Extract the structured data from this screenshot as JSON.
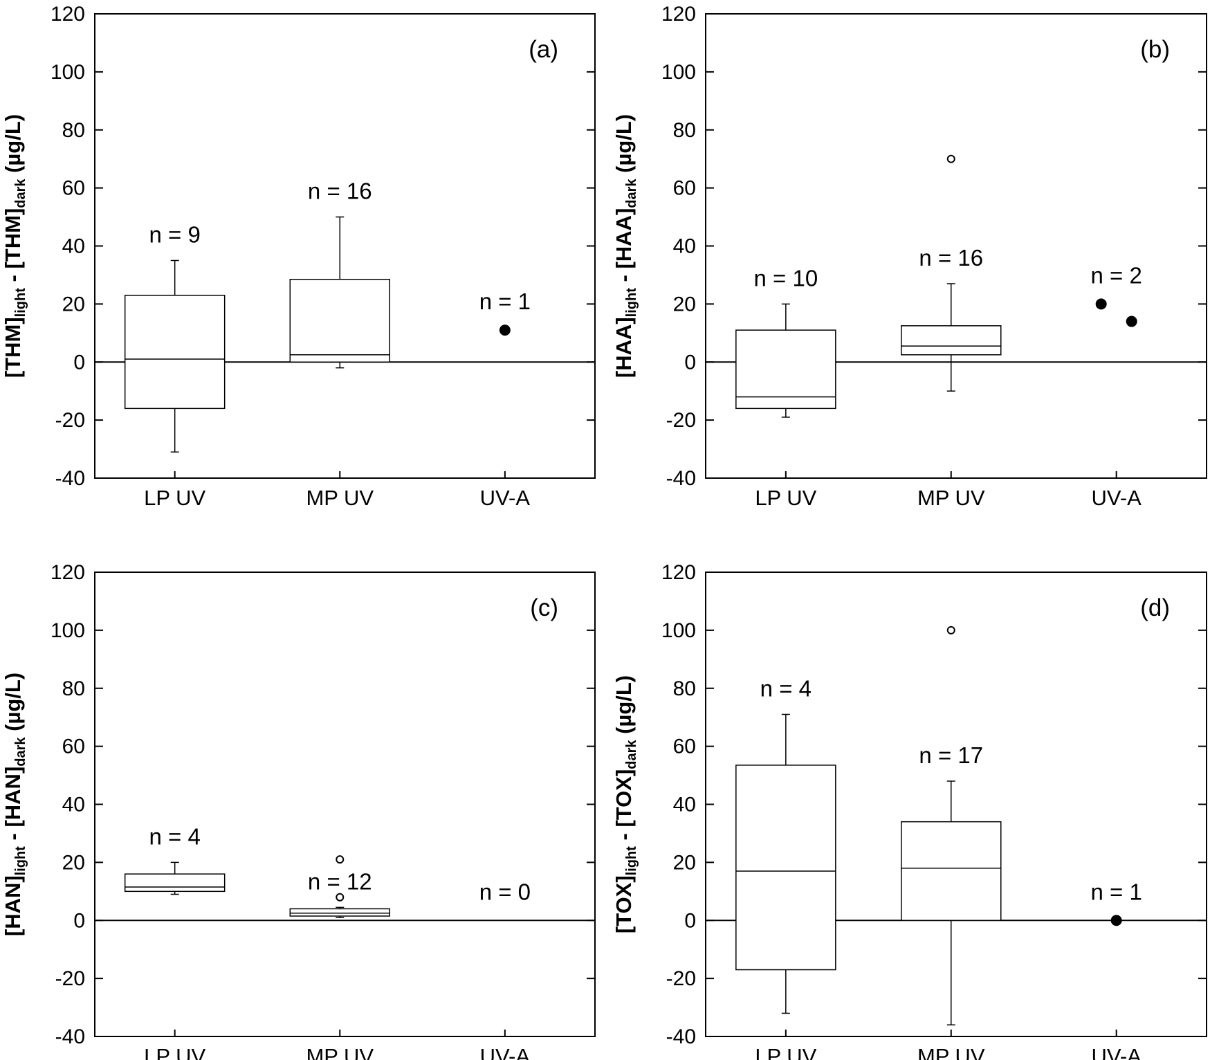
{
  "figure": {
    "x_categories": [
      "LP UV",
      "MP UV",
      "UV-A"
    ],
    "y_tick_labels": [
      "120",
      "100",
      "80",
      "60",
      "40",
      "20",
      "0",
      "-20",
      "-40"
    ]
  },
  "chart_data": [
    {
      "type": "box",
      "panel": "(a)",
      "ylabel_parts": [
        "[THM]",
        "light",
        " - [THM]",
        "dark",
        " (µg/L)"
      ],
      "ylim": [
        -40,
        120
      ],
      "yticks": [
        -40,
        -20,
        0,
        20,
        40,
        60,
        80,
        100,
        120
      ],
      "categories": [
        "LP UV",
        "MP UV",
        "UV-A"
      ],
      "series": [
        {
          "category": "LP UV",
          "n_label": "n = 9",
          "min": -31,
          "q1": -16,
          "median": 1,
          "q3": 23,
          "max": 35,
          "outliers": []
        },
        {
          "category": "MP UV",
          "n_label": "n = 16",
          "min": -2,
          "q1": 0,
          "median": 2.5,
          "q3": 28.5,
          "max": 50,
          "outliers": []
        },
        {
          "category": "UV-A",
          "n_label": "n = 1",
          "points": [
            11
          ]
        }
      ]
    },
    {
      "type": "box",
      "panel": "(b)",
      "ylabel_parts": [
        "[HAA]",
        "light",
        " - [HAA]",
        "dark",
        " (µg/L)"
      ],
      "ylim": [
        -40,
        120
      ],
      "yticks": [
        -40,
        -20,
        0,
        20,
        40,
        60,
        80,
        100,
        120
      ],
      "categories": [
        "LP UV",
        "MP UV",
        "UV-A"
      ],
      "series": [
        {
          "category": "LP UV",
          "n_label": "n = 10",
          "min": -19,
          "q1": -16,
          "median": -12,
          "q3": 11,
          "max": 20,
          "outliers": []
        },
        {
          "category": "MP UV",
          "n_label": "n = 16",
          "min": -10,
          "q1": 2.5,
          "median": 5.5,
          "q3": 12.5,
          "max": 27,
          "outliers": [
            70
          ]
        },
        {
          "category": "UV-A",
          "n_label": "n = 2",
          "points": [
            20,
            14
          ]
        }
      ]
    },
    {
      "type": "box",
      "panel": "(c)",
      "ylabel_parts": [
        "[HAN]",
        "light",
        " - [HAN]",
        "dark",
        " (µg/L)"
      ],
      "ylim": [
        -40,
        120
      ],
      "yticks": [
        -40,
        -20,
        0,
        20,
        40,
        60,
        80,
        100,
        120
      ],
      "categories": [
        "LP UV",
        "MP UV",
        "UV-A"
      ],
      "series": [
        {
          "category": "LP UV",
          "n_label": "n = 4",
          "min": 9,
          "q1": 10,
          "median": 11.5,
          "q3": 16,
          "max": 20,
          "outliers": []
        },
        {
          "category": "MP UV",
          "n_label": "n = 12",
          "min": 1,
          "q1": 1.5,
          "median": 2.5,
          "q3": 4,
          "max": 4.5,
          "outliers": [
            8,
            21
          ]
        },
        {
          "category": "UV-A",
          "n_label": "n = 0",
          "points": []
        }
      ]
    },
    {
      "type": "box",
      "panel": "(d)",
      "ylabel_parts": [
        "[TOX]",
        "light",
        " - [TOX]",
        "dark",
        " (µg/L)"
      ],
      "ylim": [
        -40,
        120
      ],
      "yticks": [
        -40,
        -20,
        0,
        20,
        40,
        60,
        80,
        100,
        120
      ],
      "categories": [
        "LP UV",
        "MP UV",
        "UV-A"
      ],
      "series": [
        {
          "category": "LP UV",
          "n_label": "n = 4",
          "min": -32,
          "q1": -17,
          "median": 17,
          "q3": 53.5,
          "max": 71,
          "outliers": []
        },
        {
          "category": "MP UV",
          "n_label": "n = 17",
          "min": -36,
          "q1": 0,
          "median": 18,
          "q3": 34,
          "max": 48,
          "outliers": [
            100
          ]
        },
        {
          "category": "UV-A",
          "n_label": "n = 1",
          "points": [
            0
          ]
        }
      ]
    }
  ]
}
